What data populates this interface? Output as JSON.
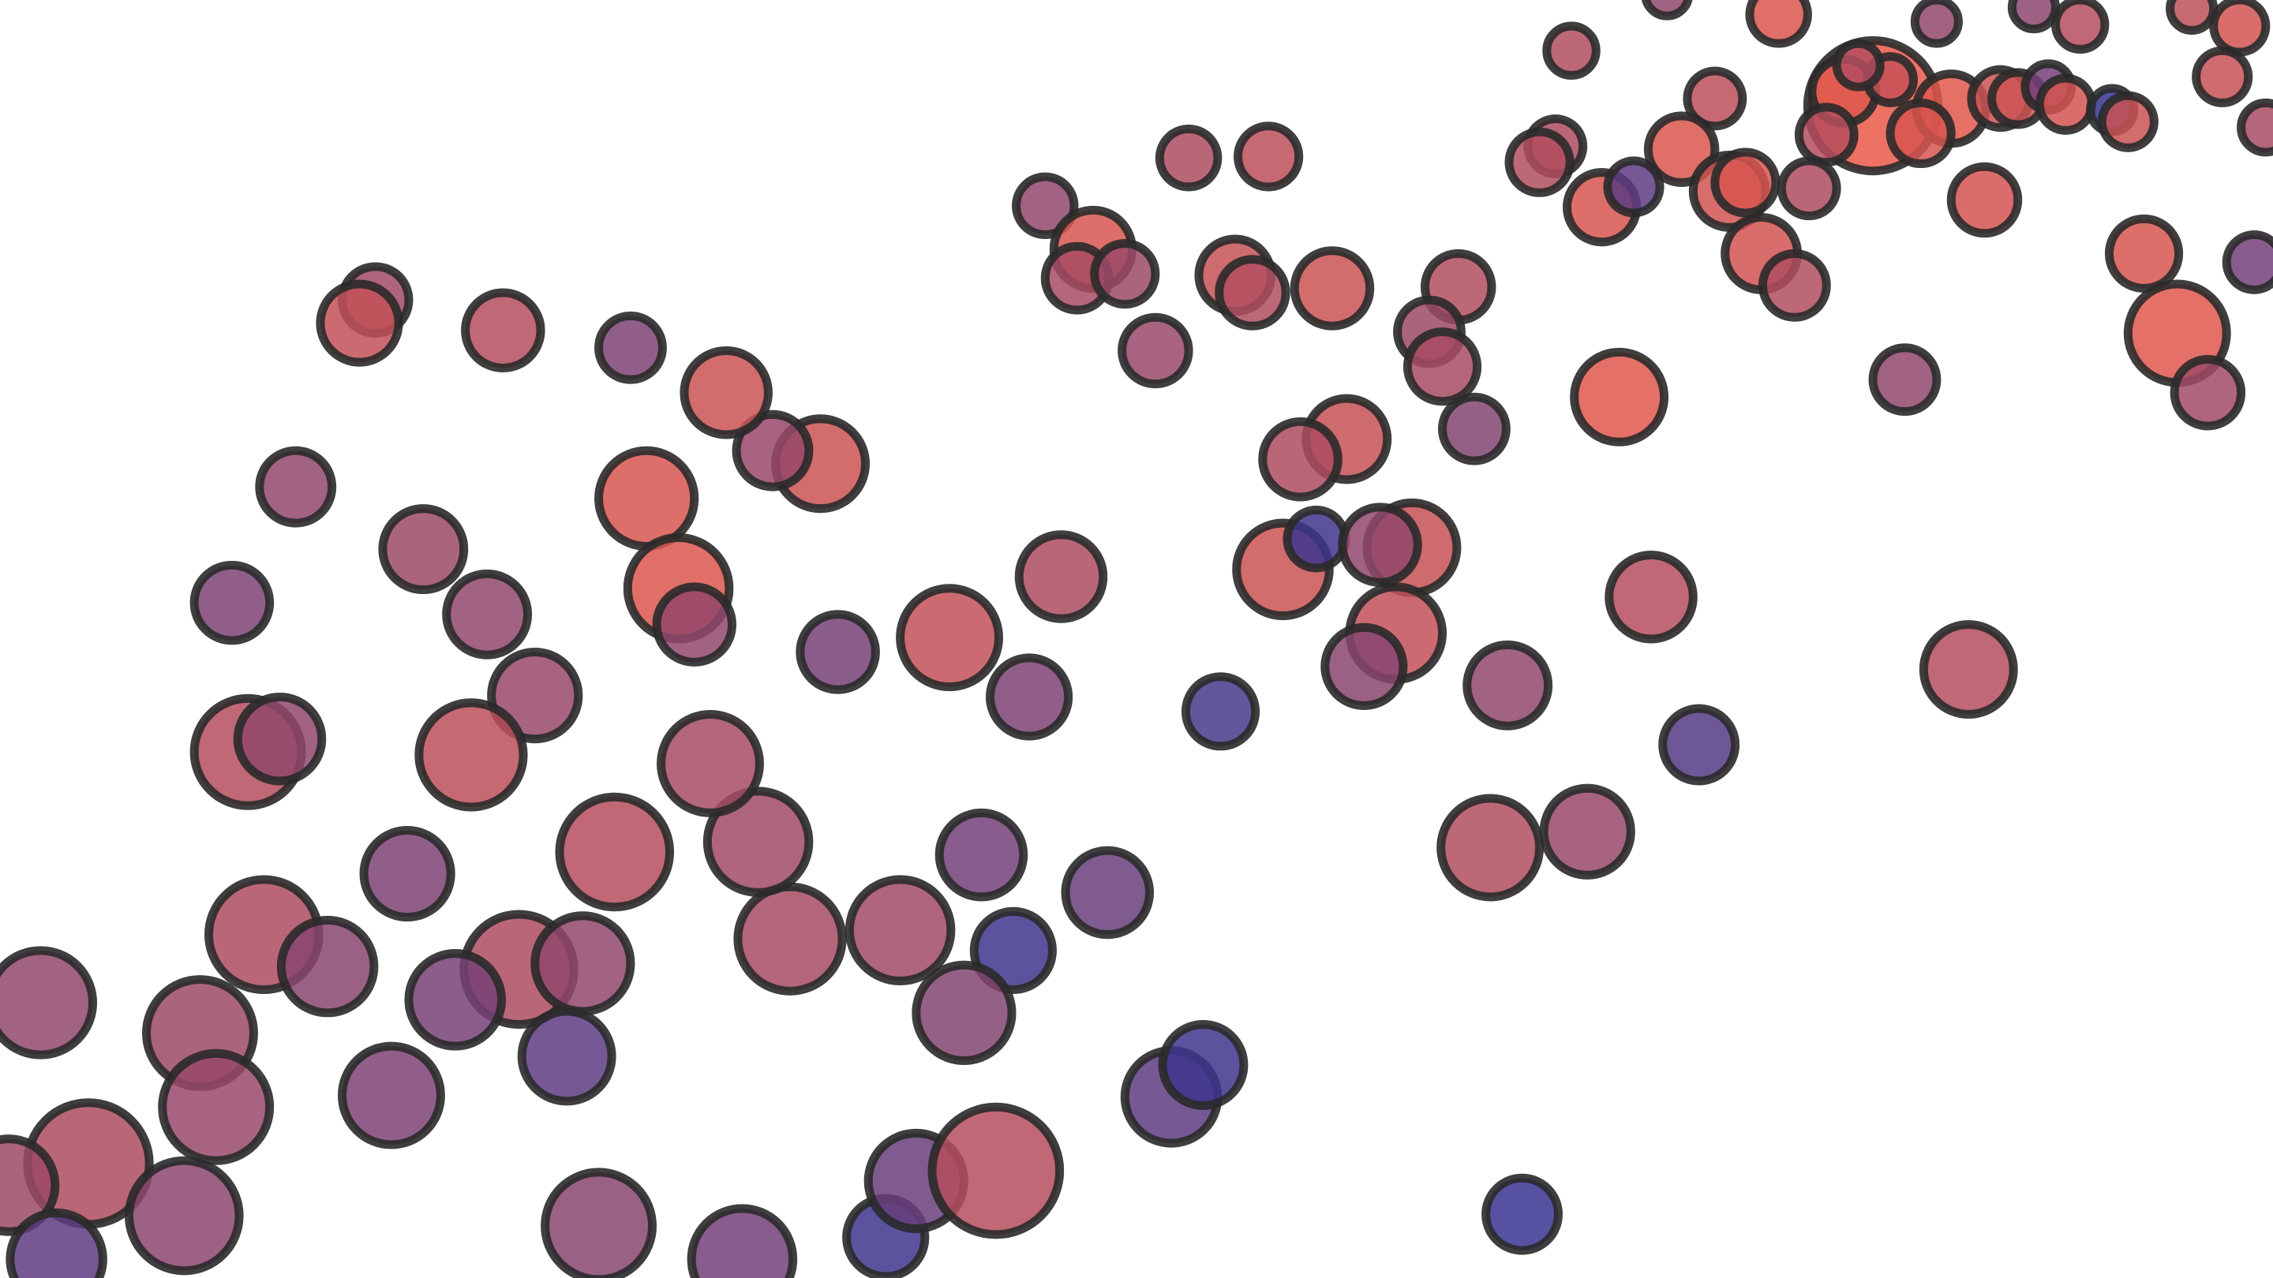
{
  "chart_data": {
    "type": "scatter",
    "title": "",
    "xlabel": "",
    "ylabel": "",
    "grid": false,
    "legend": "none",
    "xlim": [
      0,
      1568
    ],
    "ylim": [
      0,
      882
    ],
    "color_low": "#1f2f9a",
    "color_high": "#f05a45",
    "points": [
      {
        "x": 1292,
        "y": 73,
        "r": 45,
        "c": 0.97
      },
      {
        "x": 1272,
        "y": 63,
        "r": 22,
        "c": 0.92
      },
      {
        "x": 1304,
        "y": 55,
        "r": 16,
        "c": 0.8
      },
      {
        "x": 1282,
        "y": 45,
        "r": 15,
        "c": 0.7
      },
      {
        "x": 1346,
        "y": 75,
        "r": 24,
        "c": 0.93
      },
      {
        "x": 1325,
        "y": 92,
        "r": 21,
        "c": 0.88
      },
      {
        "x": 1260,
        "y": 93,
        "r": 19,
        "c": 0.72
      },
      {
        "x": 1380,
        "y": 68,
        "r": 20,
        "c": 0.82
      },
      {
        "x": 1392,
        "y": 68,
        "r": 18,
        "c": 0.84
      },
      {
        "x": 1413,
        "y": 60,
        "r": 16,
        "c": 0.4
      },
      {
        "x": 1425,
        "y": 72,
        "r": 18,
        "c": 0.86
      },
      {
        "x": 1457,
        "y": 76,
        "r": 15,
        "c": 0.1
      },
      {
        "x": 1468,
        "y": 84,
        "r": 18,
        "c": 0.82
      },
      {
        "x": 1435,
        "y": 17,
        "r": 17,
        "c": 0.72
      },
      {
        "x": 1403,
        "y": 5,
        "r": 15,
        "c": 0.52
      },
      {
        "x": 1512,
        "y": 6,
        "r": 15,
        "c": 0.76
      },
      {
        "x": 1545,
        "y": 18,
        "r": 18,
        "c": 0.85
      },
      {
        "x": 1533,
        "y": 53,
        "r": 18,
        "c": 0.8
      },
      {
        "x": 1563,
        "y": 88,
        "r": 17,
        "c": 0.65
      },
      {
        "x": 1336,
        "y": 15,
        "r": 15,
        "c": 0.55
      },
      {
        "x": 1227,
        "y": 10,
        "r": 20,
        "c": 0.9
      },
      {
        "x": 1150,
        "y": -4,
        "r": 15,
        "c": 0.55
      },
      {
        "x": 1084,
        "y": 35,
        "r": 17,
        "c": 0.7
      },
      {
        "x": 1183,
        "y": 68,
        "r": 19,
        "c": 0.75
      },
      {
        "x": 1160,
        "y": 103,
        "r": 23,
        "c": 0.9
      },
      {
        "x": 1073,
        "y": 101,
        "r": 19,
        "c": 0.68
      },
      {
        "x": 1062,
        "y": 112,
        "r": 21,
        "c": 0.7
      },
      {
        "x": 1105,
        "y": 143,
        "r": 24,
        "c": 0.88
      },
      {
        "x": 1127,
        "y": 129,
        "r": 18,
        "c": 0.3
      },
      {
        "x": 1193,
        "y": 132,
        "r": 25,
        "c": 0.85
      },
      {
        "x": 1204,
        "y": 126,
        "r": 21,
        "c": 0.88
      },
      {
        "x": 1248,
        "y": 130,
        "r": 19,
        "c": 0.68
      },
      {
        "x": 1369,
        "y": 138,
        "r": 23,
        "c": 0.86
      },
      {
        "x": 1215,
        "y": 175,
        "r": 25,
        "c": 0.85
      },
      {
        "x": 1238,
        "y": 197,
        "r": 22,
        "c": 0.7
      },
      {
        "x": 1479,
        "y": 175,
        "r": 24,
        "c": 0.88
      },
      {
        "x": 1555,
        "y": 181,
        "r": 19,
        "c": 0.4
      },
      {
        "x": 1502,
        "y": 230,
        "r": 34,
        "c": 0.92
      },
      {
        "x": 1523,
        "y": 271,
        "r": 23,
        "c": 0.62
      },
      {
        "x": 1314,
        "y": 262,
        "r": 22,
        "c": 0.55
      },
      {
        "x": 1117,
        "y": 274,
        "r": 31,
        "c": 0.92
      },
      {
        "x": 1017,
        "y": 296,
        "r": 22,
        "c": 0.48
      },
      {
        "x": 1006,
        "y": 198,
        "r": 23,
        "c": 0.7
      },
      {
        "x": 986,
        "y": 229,
        "r": 22,
        "c": 0.6
      },
      {
        "x": 995,
        "y": 253,
        "r": 24,
        "c": 0.65
      },
      {
        "x": 919,
        "y": 199,
        "r": 26,
        "c": 0.82
      },
      {
        "x": 852,
        "y": 190,
        "r": 25,
        "c": 0.8
      },
      {
        "x": 864,
        "y": 202,
        "r": 23,
        "c": 0.7
      },
      {
        "x": 875,
        "y": 108,
        "r": 21,
        "c": 0.75
      },
      {
        "x": 820,
        "y": 109,
        "r": 20,
        "c": 0.68
      },
      {
        "x": 721,
        "y": 142,
        "r": 20,
        "c": 0.55
      },
      {
        "x": 754,
        "y": 172,
        "r": 27,
        "c": 0.88
      },
      {
        "x": 743,
        "y": 192,
        "r": 22,
        "c": 0.65
      },
      {
        "x": 776,
        "y": 189,
        "r": 21,
        "c": 0.6
      },
      {
        "x": 797,
        "y": 242,
        "r": 23,
        "c": 0.58
      },
      {
        "x": 929,
        "y": 303,
        "r": 28,
        "c": 0.8
      },
      {
        "x": 897,
        "y": 317,
        "r": 26,
        "c": 0.68
      },
      {
        "x": 885,
        "y": 393,
        "r": 32,
        "c": 0.82
      },
      {
        "x": 908,
        "y": 372,
        "r": 20,
        "c": 0.15
      },
      {
        "x": 974,
        "y": 378,
        "r": 31,
        "c": 0.8
      },
      {
        "x": 952,
        "y": 376,
        "r": 26,
        "c": 0.55
      },
      {
        "x": 963,
        "y": 437,
        "r": 32,
        "c": 0.78
      },
      {
        "x": 941,
        "y": 460,
        "r": 27,
        "c": 0.5
      },
      {
        "x": 1040,
        "y": 473,
        "r": 28,
        "c": 0.55
      },
      {
        "x": 1139,
        "y": 412,
        "r": 29,
        "c": 0.72
      },
      {
        "x": 1358,
        "y": 462,
        "r": 31,
        "c": 0.72
      },
      {
        "x": 1172,
        "y": 514,
        "r": 25,
        "c": 0.25
      },
      {
        "x": 842,
        "y": 491,
        "r": 24,
        "c": 0.2
      },
      {
        "x": 1095,
        "y": 574,
        "r": 30,
        "c": 0.58
      },
      {
        "x": 1028,
        "y": 585,
        "r": 34,
        "c": 0.7
      },
      {
        "x": 732,
        "y": 398,
        "r": 29,
        "c": 0.68
      },
      {
        "x": 655,
        "y": 440,
        "r": 34,
        "c": 0.78
      },
      {
        "x": 710,
        "y": 481,
        "r": 27,
        "c": 0.45
      },
      {
        "x": 578,
        "y": 450,
        "r": 26,
        "c": 0.42
      },
      {
        "x": 677,
        "y": 590,
        "r": 29,
        "c": 0.4
      },
      {
        "x": 764,
        "y": 616,
        "r": 29,
        "c": 0.35
      },
      {
        "x": 699,
        "y": 656,
        "r": 27,
        "c": 0.15
      },
      {
        "x": 665,
        "y": 699,
        "r": 33,
        "c": 0.48
      },
      {
        "x": 621,
        "y": 642,
        "r": 35,
        "c": 0.62
      },
      {
        "x": 545,
        "y": 648,
        "r": 36,
        "c": 0.65
      },
      {
        "x": 523,
        "y": 581,
        "r": 35,
        "c": 0.62
      },
      {
        "x": 490,
        "y": 527,
        "r": 34,
        "c": 0.65
      },
      {
        "x": 424,
        "y": 588,
        "r": 38,
        "c": 0.72
      },
      {
        "x": 566,
        "y": 320,
        "r": 31,
        "c": 0.82
      },
      {
        "x": 533,
        "y": 311,
        "r": 25,
        "c": 0.58
      },
      {
        "x": 501,
        "y": 271,
        "r": 29,
        "c": 0.82
      },
      {
        "x": 446,
        "y": 344,
        "r": 33,
        "c": 0.88
      },
      {
        "x": 468,
        "y": 406,
        "r": 35,
        "c": 0.9
      },
      {
        "x": 479,
        "y": 431,
        "r": 26,
        "c": 0.55
      },
      {
        "x": 435,
        "y": 240,
        "r": 22,
        "c": 0.45
      },
      {
        "x": 347,
        "y": 228,
        "r": 26,
        "c": 0.72
      },
      {
        "x": 259,
        "y": 207,
        "r": 23,
        "c": 0.62
      },
      {
        "x": 248,
        "y": 223,
        "r": 27,
        "c": 0.78
      },
      {
        "x": 204,
        "y": 336,
        "r": 25,
        "c": 0.55
      },
      {
        "x": 292,
        "y": 379,
        "r": 28,
        "c": 0.6
      },
      {
        "x": 336,
        "y": 424,
        "r": 28,
        "c": 0.55
      },
      {
        "x": 369,
        "y": 480,
        "r": 30,
        "c": 0.58
      },
      {
        "x": 160,
        "y": 416,
        "r": 26,
        "c": 0.45
      },
      {
        "x": 171,
        "y": 519,
        "r": 37,
        "c": 0.72
      },
      {
        "x": 193,
        "y": 510,
        "r": 29,
        "c": 0.55
      },
      {
        "x": 325,
        "y": 521,
        "r": 36,
        "c": 0.75
      },
      {
        "x": 281,
        "y": 603,
        "r": 30,
        "c": 0.45
      },
      {
        "x": 182,
        "y": 645,
        "r": 38,
        "c": 0.68
      },
      {
        "x": 226,
        "y": 667,
        "r": 32,
        "c": 0.5
      },
      {
        "x": 358,
        "y": 669,
        "r": 38,
        "c": 0.68
      },
      {
        "x": 402,
        "y": 665,
        "r": 33,
        "c": 0.55
      },
      {
        "x": 314,
        "y": 690,
        "r": 32,
        "c": 0.42
      },
      {
        "x": 391,
        "y": 729,
        "r": 31,
        "c": 0.3
      },
      {
        "x": 28,
        "y": 692,
        "r": 36,
        "c": 0.55
      },
      {
        "x": 138,
        "y": 713,
        "r": 37,
        "c": 0.6
      },
      {
        "x": 149,
        "y": 764,
        "r": 37,
        "c": 0.58
      },
      {
        "x": 270,
        "y": 756,
        "r": 34,
        "c": 0.45
      },
      {
        "x": 61,
        "y": 803,
        "r": 42,
        "c": 0.68
      },
      {
        "x": 6,
        "y": 818,
        "r": 32,
        "c": 0.6
      },
      {
        "x": 127,
        "y": 839,
        "r": 38,
        "c": 0.52
      },
      {
        "x": 39,
        "y": 869,
        "r": 32,
        "c": 0.3
      },
      {
        "x": 413,
        "y": 846,
        "r": 37,
        "c": 0.5
      },
      {
        "x": 512,
        "y": 869,
        "r": 35,
        "c": 0.4
      },
      {
        "x": 611,
        "y": 854,
        "r": 27,
        "c": 0.15
      },
      {
        "x": 632,
        "y": 815,
        "r": 33,
        "c": 0.35
      },
      {
        "x": 687,
        "y": 808,
        "r": 44,
        "c": 0.72
      },
      {
        "x": 808,
        "y": 757,
        "r": 32,
        "c": 0.3
      },
      {
        "x": 830,
        "y": 735,
        "r": 28,
        "c": 0.15
      },
      {
        "x": 1050,
        "y": 838,
        "r": 25,
        "c": 0.12
      }
    ]
  }
}
